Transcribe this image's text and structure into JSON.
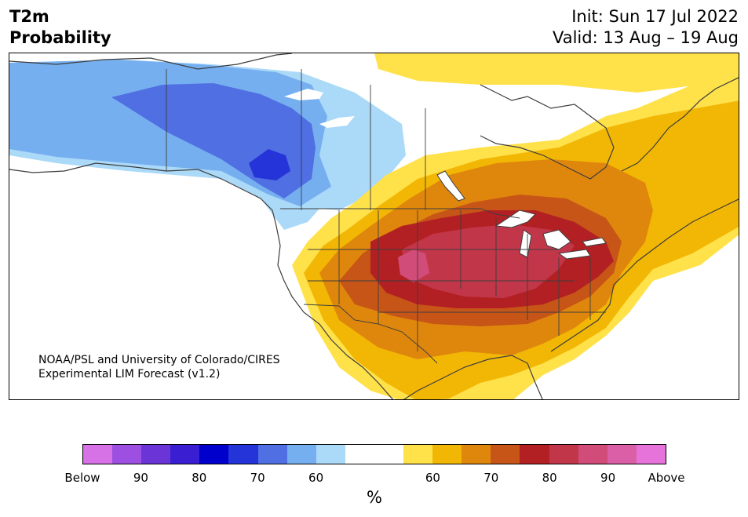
{
  "header": {
    "variable": "T2m",
    "product": "Probability",
    "init": "Init: Sun 17 Jul 2022",
    "valid": "Valid: 13 Aug – 19 Aug"
  },
  "credit": {
    "line1": "NOAA/PSL and University of Colorado/CIRES",
    "line2": "Experimental LIM Forecast (v1.2)"
  },
  "colorbar": {
    "unit": "%",
    "ticks": [
      "Below",
      "90",
      "80",
      "70",
      "60",
      "60",
      "70",
      "80",
      "90",
      "Above"
    ],
    "colors": [
      "#d671e6",
      "#9c4fe0",
      "#6a34d6",
      "#3a1fd2",
      "#0000cc",
      "#2434d8",
      "#4f6fe2",
      "#76aff0",
      "#abd9f8",
      "#ffffff",
      "#ffffff",
      "#ffe14a",
      "#f2b705",
      "#df870c",
      "#c75517",
      "#b32023",
      "#c2364a",
      "#d14c79",
      "#db5fa6",
      "#e673da"
    ]
  },
  "map": {
    "region": "North America",
    "colors": {
      "below_60": "#abd9f8",
      "below_70": "#76aff0",
      "below_80": "#4f6fe2",
      "below_90": "#2434d8",
      "above_50": "#ffe14a",
      "above_60": "#f2b705",
      "above_70": "#df870c",
      "above_80": "#c75517",
      "above_85": "#b32023",
      "above_90": "#c2364a",
      "above_95": "#d14c79",
      "lakes": "#ffffff",
      "borders": "#3d3d3d"
    }
  }
}
